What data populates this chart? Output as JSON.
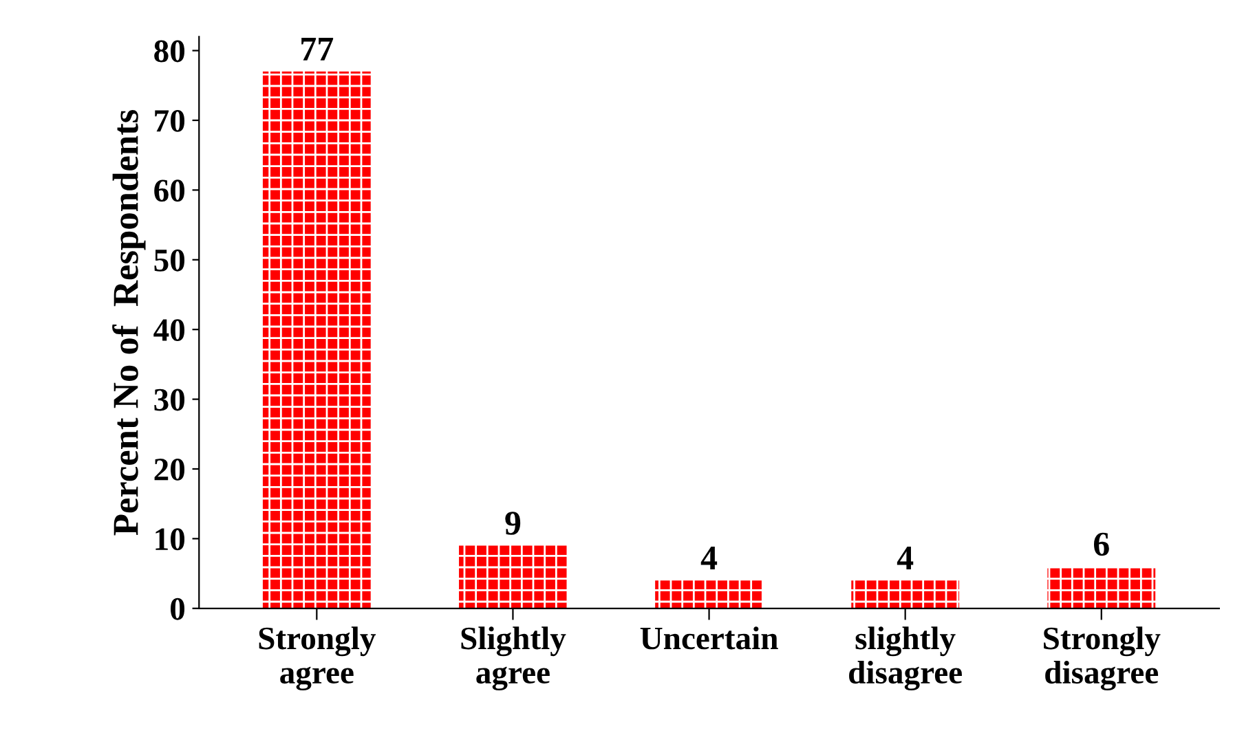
{
  "chart_data": {
    "type": "bar",
    "ylabel": "Percent No of  Respondents",
    "categories": [
      "Strongly\nagree",
      "Slightly\nagree",
      "Uncertain",
      "slightly\ndisagree",
      "Strongly\ndisagree"
    ],
    "values": [
      77,
      9,
      4,
      4,
      6
    ],
    "color": "#ff0000",
    "ylim": [
      0,
      82
    ],
    "yticks": [
      0,
      10,
      20,
      30,
      40,
      50,
      60,
      70,
      80
    ],
    "grid": false,
    "data_labels": true
  }
}
